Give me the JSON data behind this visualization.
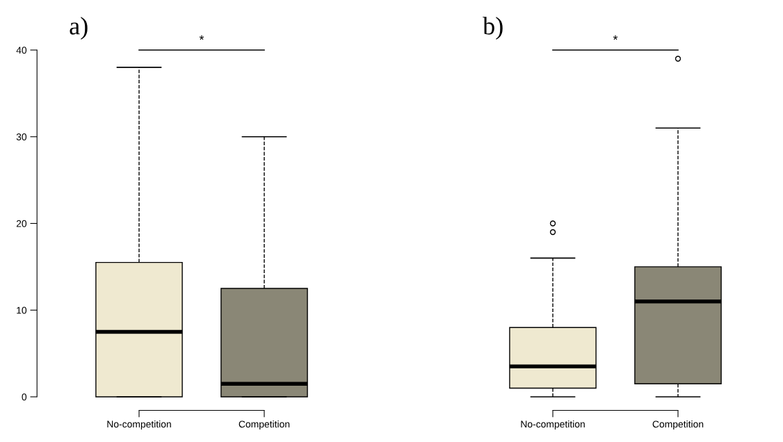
{
  "chart_data": [
    {
      "type": "box",
      "title": "a)",
      "categories": [
        "No-competition",
        "Competition"
      ],
      "colors": [
        "#efe9d0",
        "#8a8776"
      ],
      "boxes": [
        {
          "low": 0,
          "q1": 0,
          "median": 7.5,
          "q3": 15.5,
          "high": 38
        },
        {
          "low": 0,
          "q1": 0,
          "median": 1.5,
          "q3": 12.5,
          "high": 30
        }
      ],
      "ylim": [
        0,
        40
      ],
      "yticks": [
        0,
        10,
        20,
        30,
        40
      ],
      "annotations": [
        "*"
      ]
    },
    {
      "type": "box",
      "title": "b)",
      "categories": [
        "No-competition",
        "Competition"
      ],
      "colors": [
        "#efe9d0",
        "#8a8776"
      ],
      "boxes": [
        {
          "low": 0,
          "q1": 1,
          "median": 3.5,
          "q3": 8,
          "high": 16,
          "outliers": [
            19,
            20
          ]
        },
        {
          "low": 0,
          "q1": 1.5,
          "median": 11,
          "q3": 15,
          "high": 31,
          "outliers": [
            39
          ]
        }
      ],
      "ylim": [
        0,
        40
      ],
      "tick_labels": "x",
      "annotations": [
        "*"
      ]
    }
  ]
}
